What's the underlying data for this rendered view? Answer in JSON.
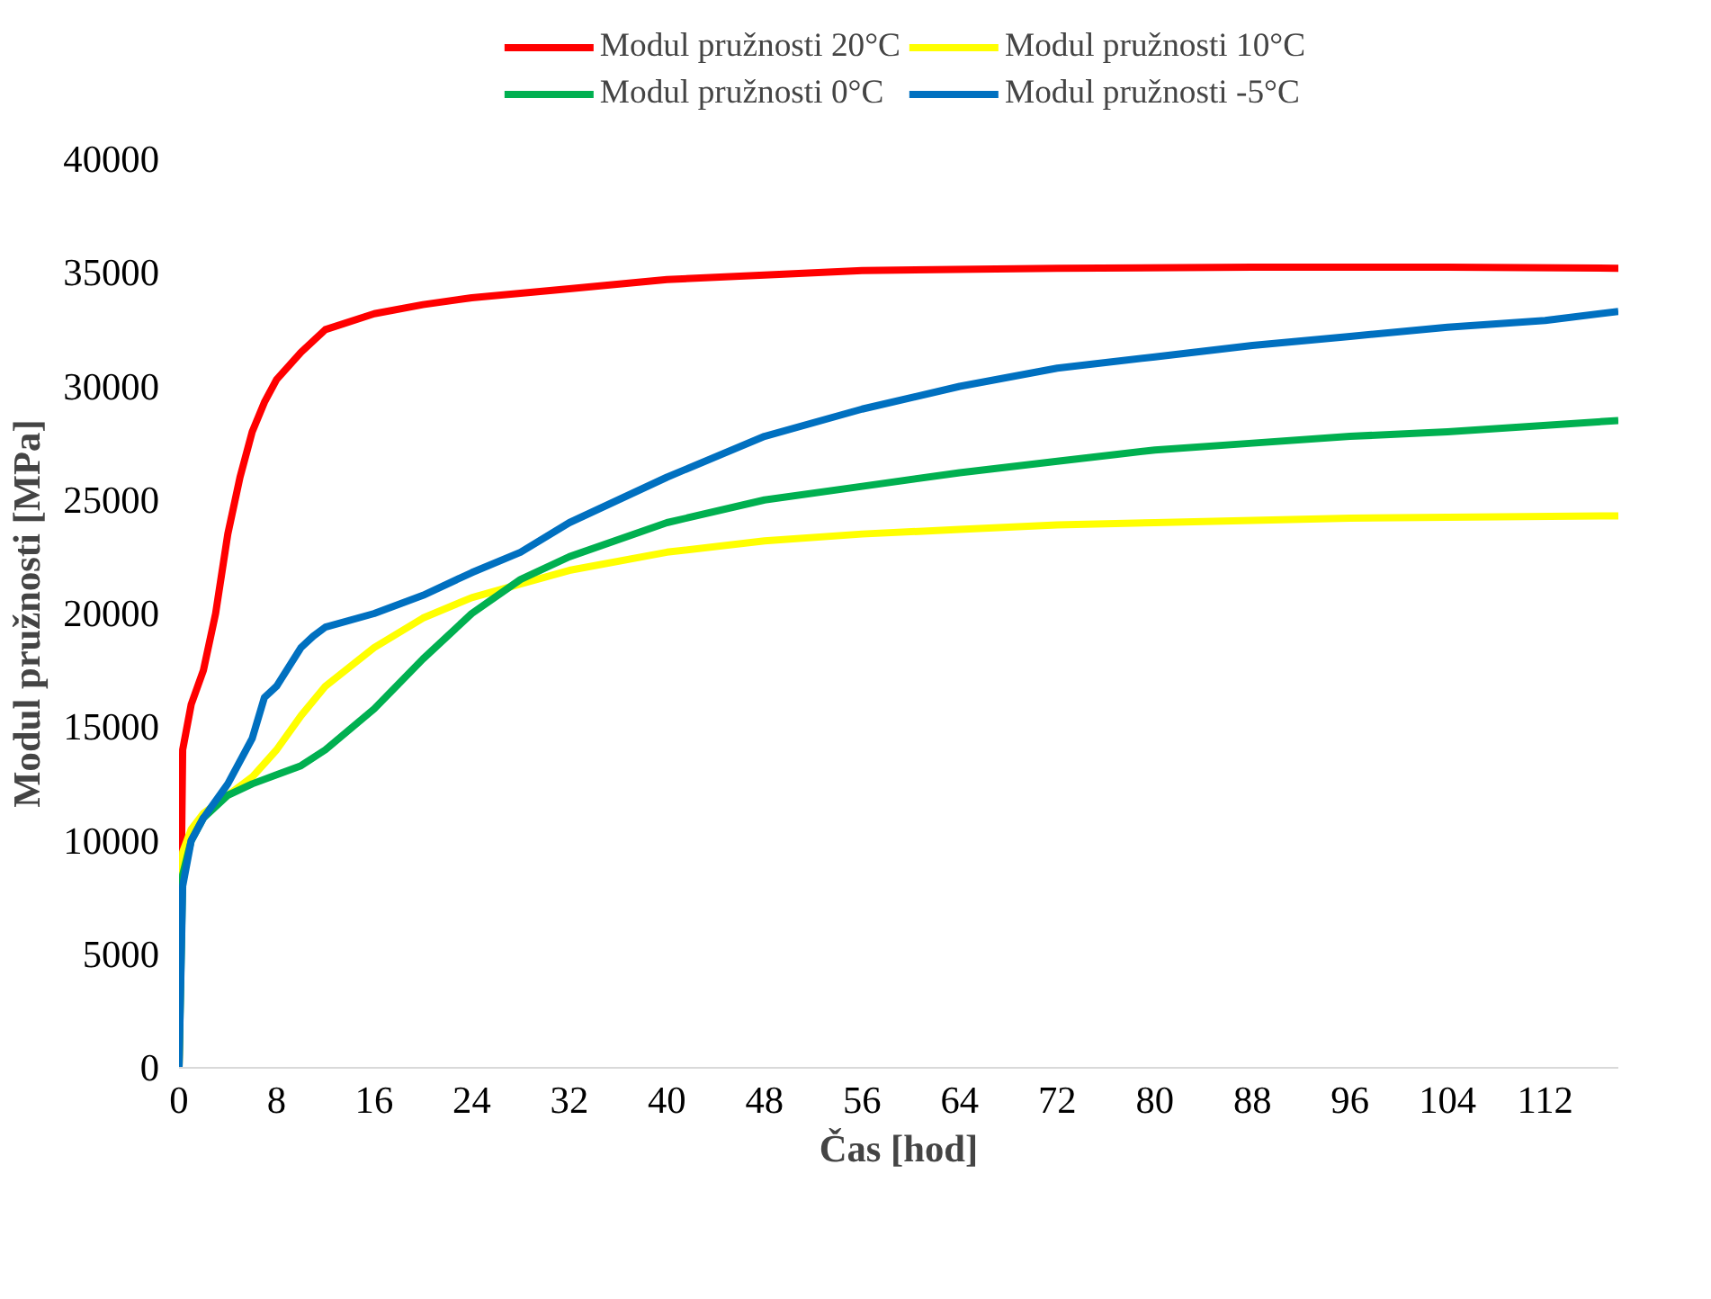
{
  "chart_data": {
    "type": "line",
    "xlabel": "Čas [hod]",
    "ylabel": "Modul pružnosti [MPa]",
    "xlim": [
      0,
      118
    ],
    "ylim": [
      0,
      40000
    ],
    "xticks": [
      0,
      8,
      16,
      24,
      32,
      40,
      48,
      56,
      64,
      72,
      80,
      88,
      96,
      104,
      112
    ],
    "yticks": [
      0,
      5000,
      10000,
      15000,
      20000,
      25000,
      30000,
      35000,
      40000
    ],
    "grid": false,
    "legend": "top",
    "line_style": "solid",
    "marker": "none",
    "series": [
      {
        "name": "Modul pružnosti 20°C",
        "color": "#ff0000",
        "x": [
          0,
          0.3,
          1,
          2,
          3,
          4,
          5,
          6,
          7,
          8,
          10,
          12,
          16,
          20,
          24,
          32,
          40,
          48,
          56,
          72,
          88,
          104,
          118
        ],
        "values": [
          0,
          14000,
          16000,
          17500,
          20000,
          23500,
          26000,
          28000,
          29300,
          30300,
          31500,
          32500,
          33200,
          33600,
          33900,
          34300,
          34700,
          34900,
          35100,
          35200,
          35250,
          35250,
          35200
        ]
      },
      {
        "name": "Modul pružnosti 10°C",
        "color": "#ffff00",
        "x": [
          0,
          0.3,
          1,
          2,
          4,
          6,
          8,
          10,
          12,
          16,
          20,
          24,
          28,
          32,
          40,
          48,
          56,
          64,
          72,
          80,
          96,
          118
        ],
        "values": [
          0,
          9500,
          10500,
          11200,
          12000,
          12800,
          14000,
          15500,
          16800,
          18500,
          19800,
          20700,
          21300,
          21900,
          22700,
          23200,
          23500,
          23700,
          23900,
          24000,
          24200,
          24300
        ]
      },
      {
        "name": "Modul pružnosti 0°C",
        "color": "#00b050",
        "x": [
          0,
          0.3,
          1,
          2,
          4,
          6,
          8,
          10,
          12,
          16,
          20,
          24,
          28,
          32,
          40,
          48,
          56,
          64,
          72,
          80,
          88,
          96,
          104,
          118
        ],
        "values": [
          0,
          8500,
          10000,
          11000,
          12000,
          12500,
          12900,
          13300,
          14000,
          15800,
          18000,
          20000,
          21500,
          22500,
          24000,
          25000,
          25600,
          26200,
          26700,
          27200,
          27500,
          27800,
          28000,
          28500
        ]
      },
      {
        "name": "Modul pružnosti -5°C",
        "color": "#0070c0",
        "x": [
          0,
          0.3,
          1,
          2,
          4,
          6,
          7,
          8,
          10,
          11,
          12,
          16,
          20,
          24,
          28,
          32,
          40,
          48,
          56,
          64,
          72,
          80,
          88,
          96,
          104,
          112,
          118
        ],
        "values": [
          0,
          8000,
          10000,
          11000,
          12500,
          14500,
          16300,
          16800,
          18500,
          19000,
          19400,
          20000,
          20800,
          21800,
          22700,
          24000,
          26000,
          27800,
          29000,
          30000,
          30800,
          31300,
          31800,
          32200,
          32600,
          32900,
          33300
        ]
      }
    ]
  }
}
